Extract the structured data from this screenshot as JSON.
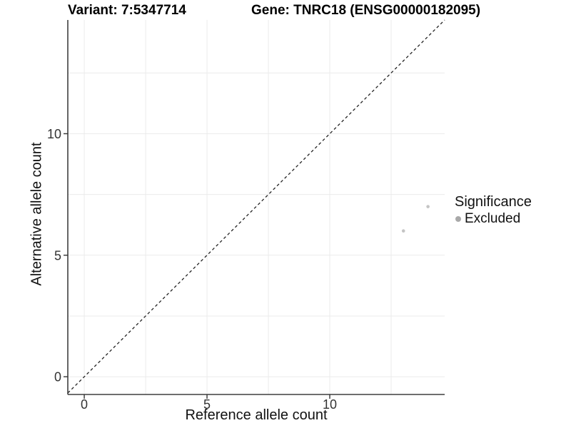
{
  "chart_data": {
    "type": "scatter",
    "titles": {
      "left": "Variant: 7:5347714",
      "right": "Gene: TNRC18 (ENSG00000182095)"
    },
    "xlabel": "Reference allele count",
    "ylabel": "Alternative allele count",
    "xlim": [
      -0.67,
      14.68
    ],
    "ylim": [
      -0.73,
      14.68
    ],
    "x_ticks": [
      0,
      5,
      10
    ],
    "y_ticks": [
      0,
      5,
      10
    ],
    "grid": {
      "show": true,
      "interval": 2.5,
      "color": "#ebebeb"
    },
    "reference_line": {
      "slope": 1,
      "intercept": 0,
      "style": "dashed",
      "color": "#222222"
    },
    "series": [
      {
        "name": "Excluded",
        "color": "#c4c4c4",
        "point_radius": 2.3,
        "points": [
          {
            "x": 13,
            "y": 6
          },
          {
            "x": 14,
            "y": 7
          }
        ]
      }
    ],
    "legend": {
      "title": "Significance",
      "position": "right",
      "items": [
        {
          "label": "Excluded",
          "color": "#a9a9a9"
        }
      ]
    },
    "axis_color": "#3f3f3f"
  }
}
